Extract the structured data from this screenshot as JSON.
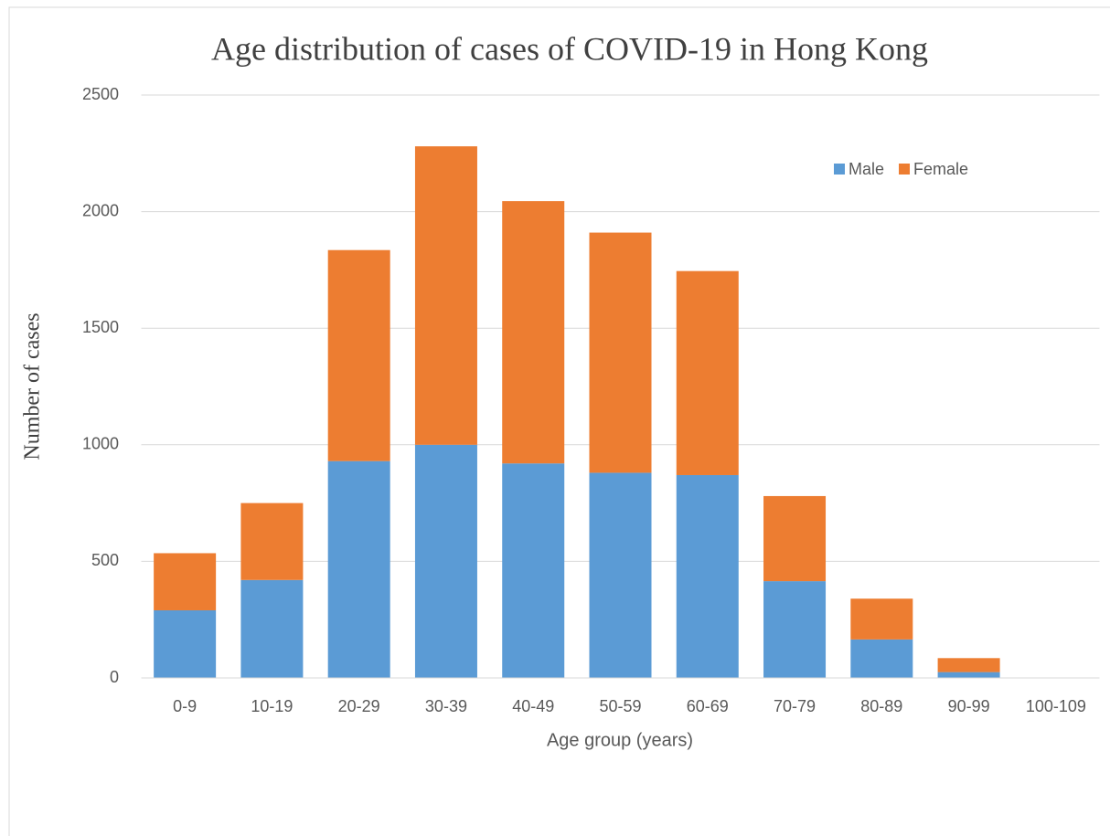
{
  "chart_data": {
    "type": "stacked-bar",
    "title": "Age distribution of cases of COVID-19 in Hong Kong",
    "x_label": "Age group (years)",
    "y_label": "Number of cases",
    "categories": [
      "0-9",
      "10-19",
      "20-29",
      "30-39",
      "40-49",
      "50-59",
      "60-69",
      "70-79",
      "80-89",
      "90-99",
      "100-109"
    ],
    "series": [
      {
        "name": "Male",
        "color": "#5b9bd5",
        "values": [
          290,
          420,
          930,
          1000,
          920,
          880,
          870,
          415,
          165,
          25,
          0
        ]
      },
      {
        "name": "Female",
        "color": "#ed7d31",
        "values": [
          245,
          330,
          905,
          1280,
          1125,
          1030,
          875,
          365,
          175,
          60,
          0
        ]
      }
    ],
    "ylim": [
      0,
      2500
    ],
    "yticks": [
      0,
      500,
      1000,
      1500,
      2000,
      2500
    ],
    "grid": true,
    "legend": "top-right"
  }
}
